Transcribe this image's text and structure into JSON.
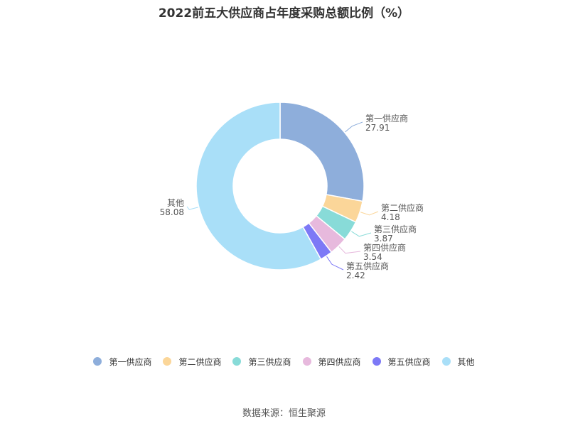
{
  "title": "2022前五大供应商占年度采购总额比例（%）",
  "source": "数据来源：恒生聚源",
  "chart_data": {
    "type": "pie",
    "style": "donut",
    "title": "2022前五大供应商占年度采购总额比例（%）",
    "start_angle": "top (12 o'clock)",
    "direction": "clockwise",
    "legend_position": "bottom",
    "slices": [
      {
        "name": "第一供应商",
        "value": 27.91,
        "value_label": "27.91",
        "color": "#8eaedb"
      },
      {
        "name": "第二供应商",
        "value": 4.18,
        "value_label": "4.18",
        "color": "#fbd699"
      },
      {
        "name": "第三供应商",
        "value": 3.87,
        "value_label": "3.87",
        "color": "#88dbd8"
      },
      {
        "name": "第四供应商",
        "value": 3.54,
        "value_label": "3.54",
        "color": "#e7b9dd"
      },
      {
        "name": "第五供应商",
        "value": 2.42,
        "value_label": "2.42",
        "color": "#7d79f6"
      },
      {
        "name": "其他",
        "value": 58.08,
        "value_label": "58.08",
        "color": "#a9dff8"
      }
    ]
  }
}
